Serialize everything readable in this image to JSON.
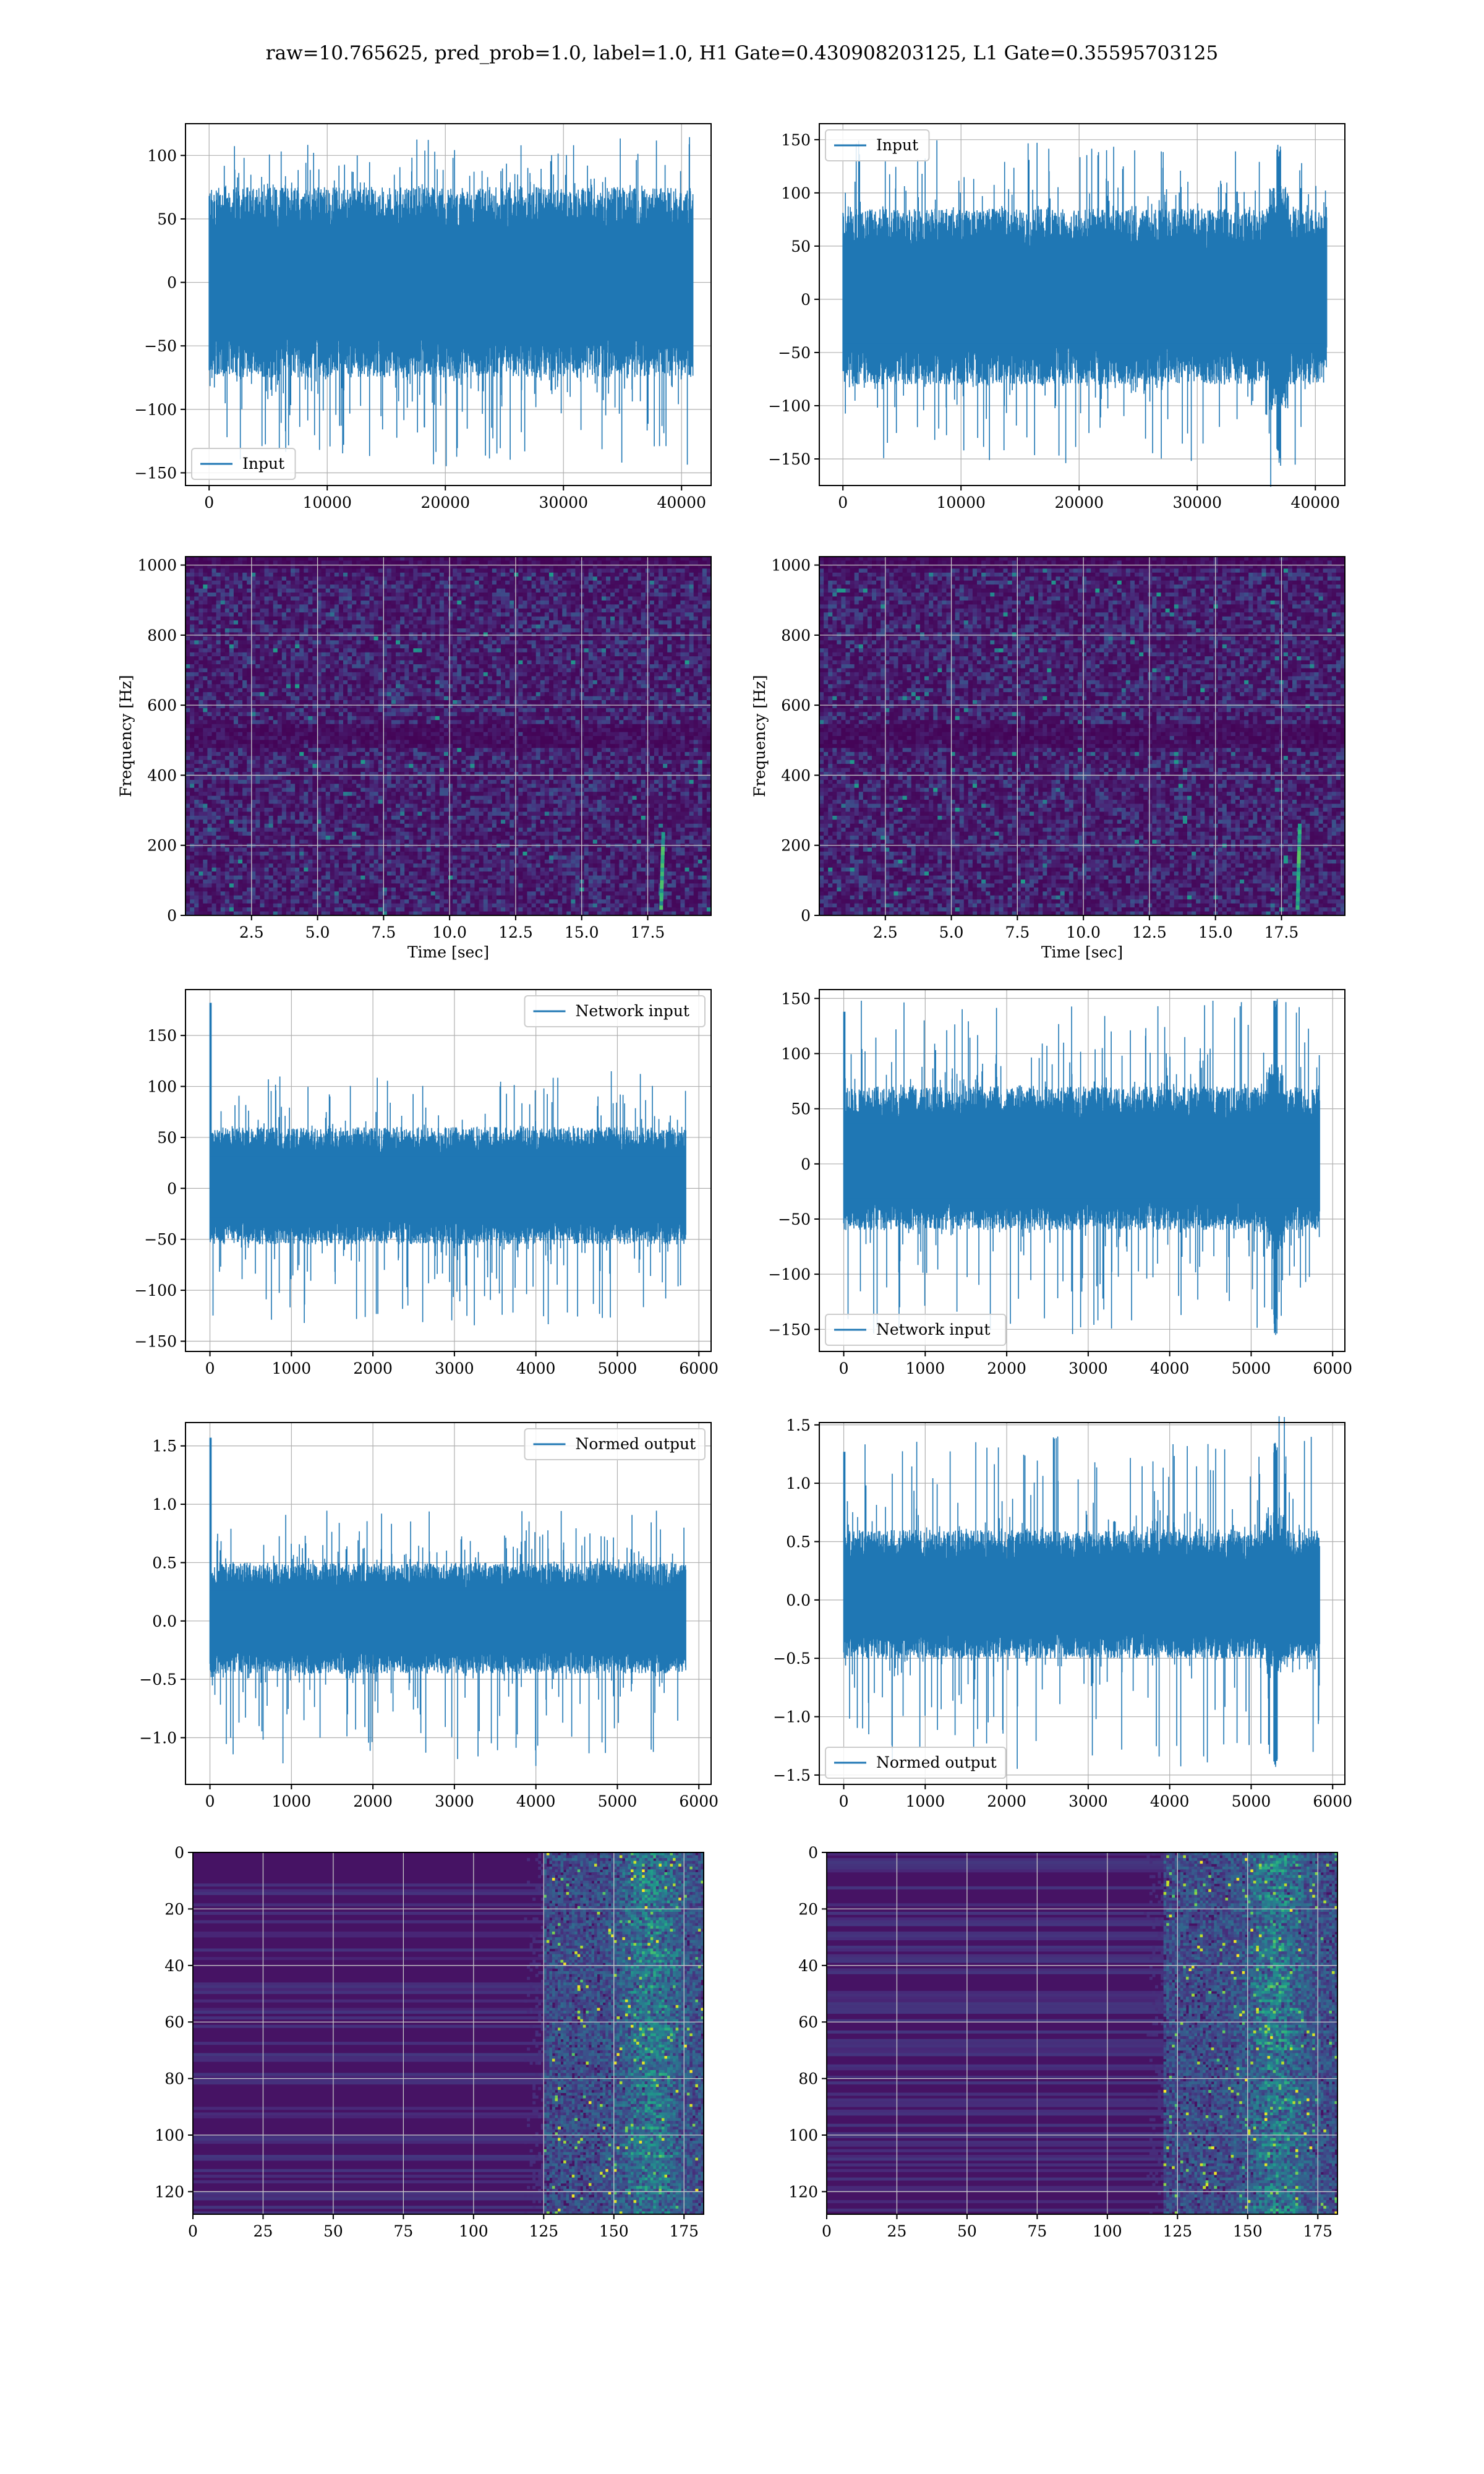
{
  "suptitle": "raw=10.765625, pred_prob=1.0, label=1.0, H1 Gate=0.430908203125, L1 Gate=0.35595703125",
  "colors": {
    "line": "#1f77b4",
    "grid": "#b0b0b0",
    "viridis_dark": "#440154",
    "viridis_mid": "#21918c",
    "viridis_light": "#5ec962"
  },
  "chart_data": [
    {
      "id": "h1-input",
      "type": "line",
      "series": [
        {
          "name": "Input"
        }
      ],
      "legend": "lower-left",
      "xlim": [
        -2000,
        42500
      ],
      "ylim": [
        -160,
        125
      ],
      "xticks": [
        0,
        10000,
        20000,
        30000,
        40000
      ],
      "xtick_labels": [
        "0",
        "10000",
        "20000",
        "30000",
        "40000"
      ],
      "yticks": [
        -150,
        -100,
        -50,
        0,
        50,
        100
      ],
      "ytick_labels": [
        "−150",
        "−100",
        "−50",
        "0",
        "50",
        "100"
      ],
      "signal": {
        "n_samples": 40960,
        "x_end": 40960,
        "band": [
          -75,
          75
        ],
        "peak_high": 115,
        "peak_low": -145,
        "glitch_at": null,
        "start_spike": null
      }
    },
    {
      "id": "l1-input",
      "type": "line",
      "series": [
        {
          "name": "Input"
        }
      ],
      "legend": "upper-left",
      "xlim": [
        -2000,
        42500
      ],
      "ylim": [
        -175,
        165
      ],
      "xticks": [
        0,
        10000,
        20000,
        30000,
        40000
      ],
      "xtick_labels": [
        "0",
        "10000",
        "20000",
        "30000",
        "40000"
      ],
      "yticks": [
        -150,
        -100,
        -50,
        0,
        50,
        100,
        150
      ],
      "ytick_labels": [
        "−150",
        "−100",
        "−50",
        "0",
        "50",
        "100",
        "150"
      ],
      "signal": {
        "n_samples": 40960,
        "x_end": 40960,
        "band": [
          -80,
          85
        ],
        "peak_high": 150,
        "peak_low": -157,
        "glitch_at": 36900,
        "start_spike": null
      }
    },
    {
      "id": "h1-spectrogram",
      "type": "heatmap",
      "xlabel": "Time [sec]",
      "ylabel": "Frequency [Hz]",
      "xlim": [
        0,
        19.9
      ],
      "ylim": [
        0,
        1024
      ],
      "xticks": [
        2.5,
        5.0,
        7.5,
        10.0,
        12.5,
        15.0,
        17.5
      ],
      "xtick_labels": [
        "2.5",
        "5.0",
        "7.5",
        "10.0",
        "12.5",
        "15.0",
        "17.5"
      ],
      "yticks": [
        0,
        200,
        400,
        600,
        800,
        1000
      ],
      "ytick_labels": [
        "0",
        "200",
        "400",
        "600",
        "800",
        "1000"
      ],
      "colormap": "viridis",
      "chirp_time": 18.0,
      "chirp_max_freq": 240,
      "dark_band_freq": 512
    },
    {
      "id": "l1-spectrogram",
      "type": "heatmap",
      "xlabel": "Time [sec]",
      "ylabel": "Frequency [Hz]",
      "xlim": [
        0,
        19.9
      ],
      "ylim": [
        0,
        1024
      ],
      "xticks": [
        2.5,
        5.0,
        7.5,
        10.0,
        12.5,
        15.0,
        17.5
      ],
      "xtick_labels": [
        "2.5",
        "5.0",
        "7.5",
        "10.0",
        "12.5",
        "15.0",
        "17.5"
      ],
      "yticks": [
        0,
        200,
        400,
        600,
        800,
        1000
      ],
      "ytick_labels": [
        "0",
        "200",
        "400",
        "600",
        "800",
        "1000"
      ],
      "colormap": "viridis",
      "chirp_time": 18.1,
      "chirp_max_freq": 260,
      "dark_band_freq": 512
    },
    {
      "id": "h1-network-input",
      "type": "line",
      "series": [
        {
          "name": "Network input"
        }
      ],
      "legend": "upper-right",
      "xlim": [
        -300,
        6150
      ],
      "ylim": [
        -160,
        195
      ],
      "xticks": [
        0,
        1000,
        2000,
        3000,
        4000,
        5000,
        6000
      ],
      "xtick_labels": [
        "0",
        "1000",
        "2000",
        "3000",
        "4000",
        "5000",
        "6000"
      ],
      "yticks": [
        -150,
        -100,
        -50,
        0,
        50,
        100,
        150
      ],
      "ytick_labels": [
        "−150",
        "−100",
        "−50",
        "0",
        "50",
        "100",
        "150"
      ],
      "signal": {
        "n_samples": 5840,
        "x_end": 5840,
        "band": [
          -55,
          60
        ],
        "peak_high": 115,
        "peak_low": -138,
        "glitch_at": null,
        "start_spike": 182
      }
    },
    {
      "id": "l1-network-input",
      "type": "line",
      "series": [
        {
          "name": "Network input"
        }
      ],
      "legend": "lower-left",
      "xlim": [
        -300,
        6150
      ],
      "ylim": [
        -170,
        158
      ],
      "xticks": [
        0,
        1000,
        2000,
        3000,
        4000,
        5000,
        6000
      ],
      "xtick_labels": [
        "0",
        "1000",
        "2000",
        "3000",
        "4000",
        "5000",
        "6000"
      ],
      "yticks": [
        -150,
        -100,
        -50,
        0,
        50,
        100,
        150
      ],
      "ytick_labels": [
        "−150",
        "−100",
        "−50",
        "0",
        "50",
        "100",
        "150"
      ],
      "signal": {
        "n_samples": 5840,
        "x_end": 5840,
        "band": [
          -60,
          70
        ],
        "peak_high": 150,
        "peak_low": -157,
        "glitch_at": 5300,
        "start_spike": 138
      }
    },
    {
      "id": "h1-normed-output",
      "type": "line",
      "series": [
        {
          "name": "Normed output"
        }
      ],
      "legend": "upper-right",
      "xlim": [
        -300,
        6150
      ],
      "ylim": [
        -1.4,
        1.7
      ],
      "xticks": [
        0,
        1000,
        2000,
        3000,
        4000,
        5000,
        6000
      ],
      "xtick_labels": [
        "0",
        "1000",
        "2000",
        "3000",
        "4000",
        "5000",
        "6000"
      ],
      "yticks": [
        -1.0,
        -0.5,
        0.0,
        0.5,
        1.0,
        1.5
      ],
      "ytick_labels": [
        "−1.0",
        "−0.5",
        "0.0",
        "0.5",
        "1.0",
        "1.5"
      ],
      "signal": {
        "n_samples": 5840,
        "x_end": 5840,
        "band": [
          -0.45,
          0.5
        ],
        "peak_high": 0.95,
        "peak_low": -1.25,
        "glitch_at": null,
        "start_spike": 1.57
      }
    },
    {
      "id": "l1-normed-output",
      "type": "line",
      "series": [
        {
          "name": "Normed output"
        }
      ],
      "legend": "lower-left",
      "xlim": [
        -300,
        6150
      ],
      "ylim": [
        -1.58,
        1.52
      ],
      "xticks": [
        0,
        1000,
        2000,
        3000,
        4000,
        5000,
        6000
      ],
      "xtick_labels": [
        "0",
        "1000",
        "2000",
        "3000",
        "4000",
        "5000",
        "6000"
      ],
      "yticks": [
        -1.5,
        -1.0,
        -0.5,
        0.0,
        0.5,
        1.0,
        1.5
      ],
      "ytick_labels": [
        "−1.5",
        "−1.0",
        "−0.5",
        "0.0",
        "0.5",
        "1.0",
        "1.5"
      ],
      "signal": {
        "n_samples": 5840,
        "x_end": 5840,
        "band": [
          -0.5,
          0.6
        ],
        "peak_high": 1.4,
        "peak_low": -1.45,
        "glitch_at": 5300,
        "start_spike": 1.27
      }
    },
    {
      "id": "h1-feature-map",
      "type": "heatmap",
      "xlim": [
        0,
        182
      ],
      "ylim": [
        0,
        128
      ],
      "y_inverted": true,
      "xticks": [
        0,
        25,
        50,
        75,
        100,
        125,
        150,
        175
      ],
      "xtick_labels": [
        "0",
        "25",
        "50",
        "75",
        "100",
        "125",
        "150",
        "175"
      ],
      "yticks": [
        0,
        20,
        40,
        60,
        80,
        100,
        120
      ],
      "ytick_labels": [
        "0",
        "20",
        "40",
        "60",
        "80",
        "100",
        "120"
      ],
      "colormap": "viridis",
      "n_rows": 128,
      "n_cols": 182,
      "active_from": 125,
      "hot_center": 163
    },
    {
      "id": "l1-feature-map",
      "type": "heatmap",
      "xlim": [
        0,
        182
      ],
      "ylim": [
        0,
        128
      ],
      "y_inverted": true,
      "xticks": [
        0,
        25,
        50,
        75,
        100,
        125,
        150,
        175
      ],
      "xtick_labels": [
        "0",
        "25",
        "50",
        "75",
        "100",
        "125",
        "150",
        "175"
      ],
      "yticks": [
        0,
        20,
        40,
        60,
        80,
        100,
        120
      ],
      "ytick_labels": [
        "0",
        "20",
        "40",
        "60",
        "80",
        "100",
        "120"
      ],
      "colormap": "viridis",
      "n_rows": 128,
      "n_cols": 182,
      "active_from": 120,
      "hot_center": 160
    }
  ]
}
